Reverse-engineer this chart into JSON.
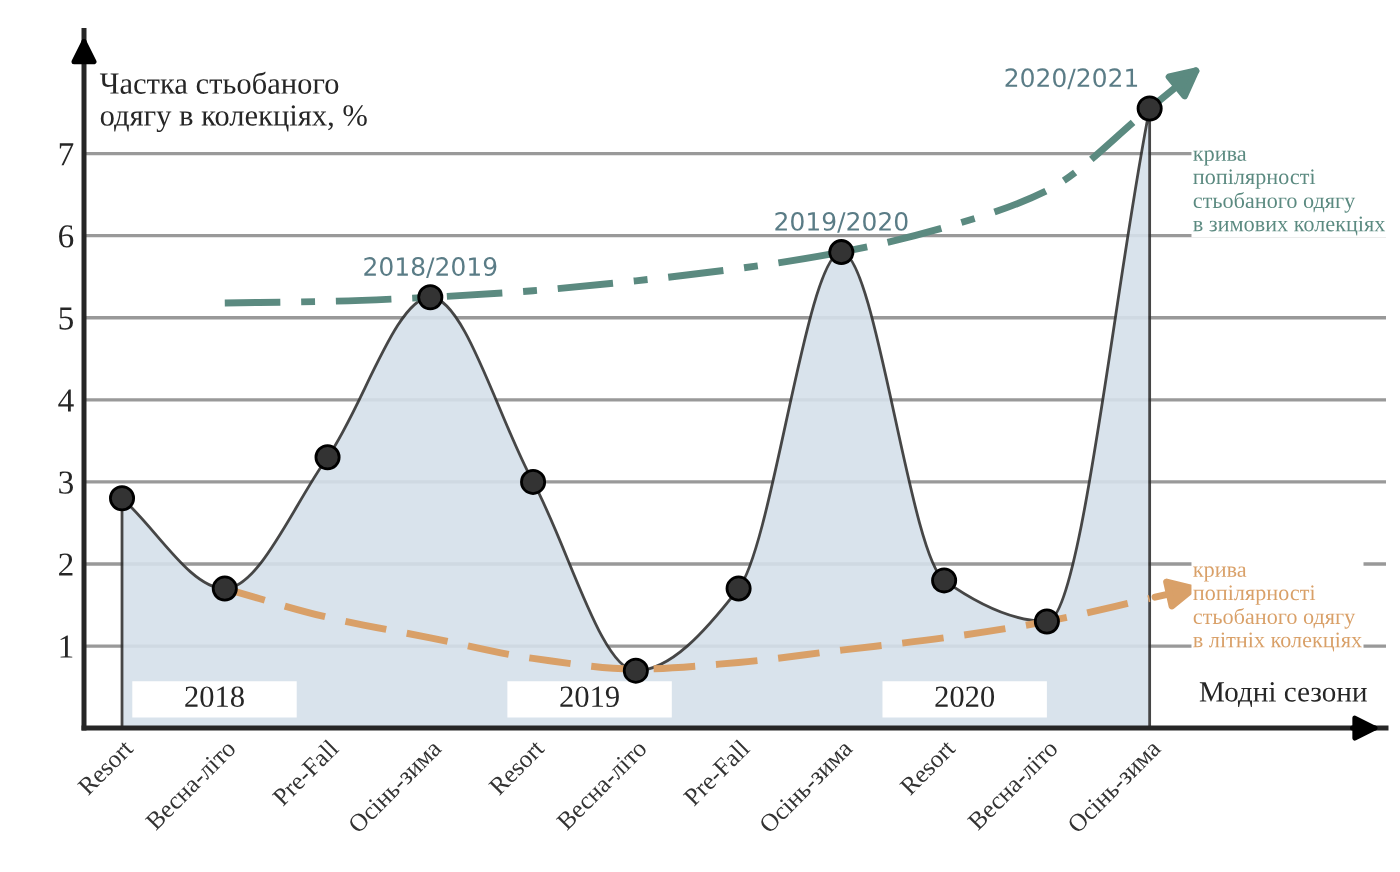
{
  "chart_data": {
    "type": "area",
    "ylabel": "Частка стьобаного\nодягу в колекціях, %",
    "xlabel": "Модні сезони",
    "categories": [
      "Resort",
      "Весна-літо",
      "Pre-Fall",
      "Осінь-зима",
      "Resort",
      "Весна-літо",
      "Pre-Fall",
      "Осінь-зима",
      "Resort",
      "Весна-літо",
      "Осінь-зима"
    ],
    "series": [
      {
        "color": "#333333",
        "values": [
          2.8,
          1.7,
          3.3,
          5.25,
          3.0,
          0.7,
          1.7,
          5.8,
          1.8,
          1.3,
          7.55
        ],
        "value_labels": [
          null,
          null,
          null,
          "2018/2019",
          null,
          null,
          null,
          "2019/2020",
          null,
          null,
          "2020/2021"
        ],
        "marker": "circle"
      },
      {
        "type": "line",
        "name": "крива\nпопілярності\nстьобаного одягу\nв зимових колекціях",
        "color": "#5b8a80",
        "line_style": "dashdot",
        "values": [
          null,
          5.18,
          5.2,
          5.25,
          5.33,
          5.45,
          5.6,
          5.8,
          6.1,
          6.55,
          7.55
        ]
      },
      {
        "type": "line",
        "name": "крива\nпопілярності\nстьобаного одягу\nв літніх колекціях",
        "color": "#d9a068",
        "line_style": "dashed",
        "values": [
          null,
          1.7,
          1.35,
          1.1,
          0.85,
          0.72,
          0.8,
          0.95,
          1.1,
          1.3,
          1.58
        ]
      }
    ],
    "ylim": [
      0,
      8.5
    ],
    "yticks": [
      1,
      2,
      3,
      4,
      5,
      6,
      7
    ],
    "grid": "y",
    "annotations": [
      "2018",
      "2019",
      "2020"
    ]
  }
}
